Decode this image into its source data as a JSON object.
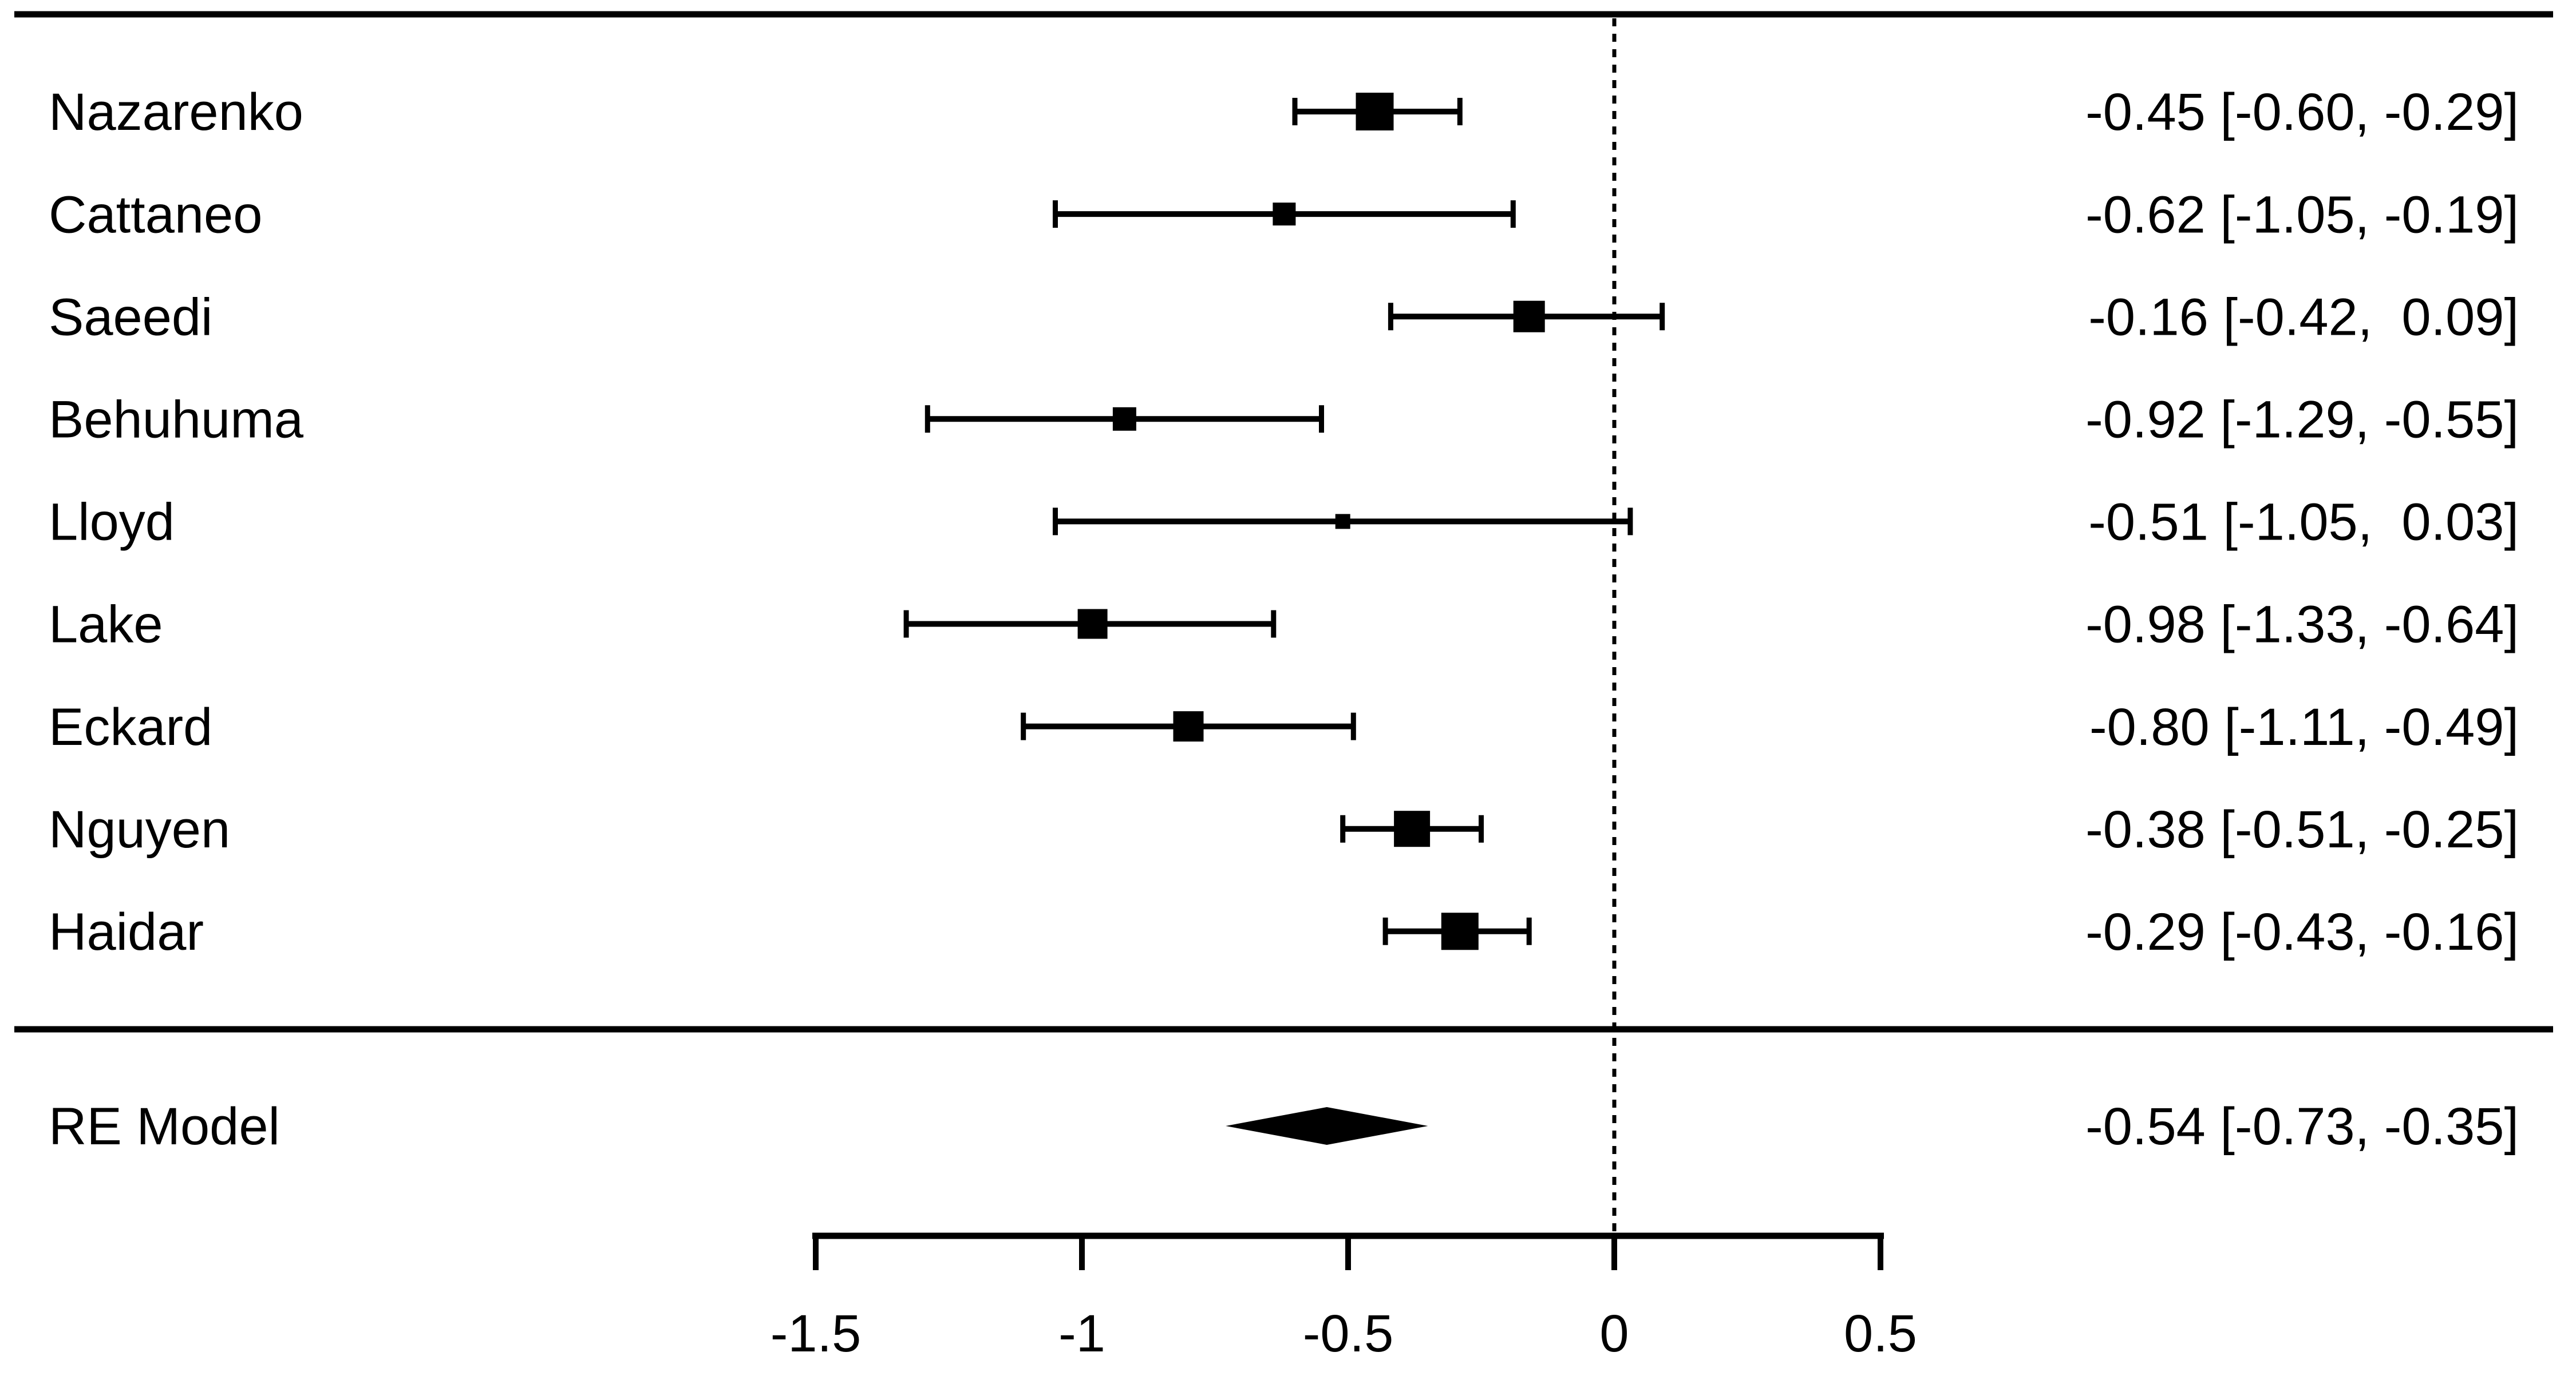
{
  "chart_data": {
    "type": "forest",
    "title": "",
    "x_axis": {
      "ticks": [
        -1.5,
        -1.0,
        -0.5,
        0.0,
        0.5
      ],
      "tick_labels": [
        "-1.5",
        "-1",
        "-0.5",
        "0",
        "0.5"
      ],
      "range": [
        -1.5,
        0.5
      ],
      "reference_line": 0
    },
    "studies": [
      {
        "label": "Nazarenko",
        "estimate": -0.45,
        "ci_low": -0.6,
        "ci_high": -0.29,
        "annotation": "-0.45 [-0.60, -0.29]",
        "marker_size": 66
      },
      {
        "label": "Cattaneo",
        "estimate": -0.62,
        "ci_low": -1.05,
        "ci_high": -0.19,
        "annotation": "-0.62 [-1.05, -0.19]",
        "marker_size": 40
      },
      {
        "label": "Saeedi",
        "estimate": -0.16,
        "ci_low": -0.42,
        "ci_high": 0.09,
        "annotation": "-0.16 [-0.42,  0.09]",
        "marker_size": 55
      },
      {
        "label": "Behuhuma",
        "estimate": -0.92,
        "ci_low": -1.29,
        "ci_high": -0.55,
        "annotation": "-0.92 [-1.29, -0.55]",
        "marker_size": 41
      },
      {
        "label": "Lloyd",
        "estimate": -0.51,
        "ci_low": -1.05,
        "ci_high": 0.03,
        "annotation": "-0.51 [-1.05,  0.03]",
        "marker_size": 26
      },
      {
        "label": "Lake",
        "estimate": -0.98,
        "ci_low": -1.33,
        "ci_high": -0.64,
        "annotation": "-0.98 [-1.33, -0.64]",
        "marker_size": 52
      },
      {
        "label": "Eckard",
        "estimate": -0.8,
        "ci_low": -1.11,
        "ci_high": -0.49,
        "annotation": "-0.80 [-1.11, -0.49]",
        "marker_size": 53
      },
      {
        "label": "Nguyen",
        "estimate": -0.38,
        "ci_low": -0.51,
        "ci_high": -0.25,
        "annotation": "-0.38 [-0.51, -0.25]",
        "marker_size": 63
      },
      {
        "label": "Haidar",
        "estimate": -0.29,
        "ci_low": -0.43,
        "ci_high": -0.16,
        "annotation": "-0.29 [-0.43, -0.16]",
        "marker_size": 65
      }
    ],
    "summary": {
      "label": "RE Model",
      "estimate": -0.54,
      "ci_low": -0.73,
      "ci_high": -0.35,
      "annotation": "-0.54 [-0.73, -0.35]"
    },
    "colors": {
      "foreground": "#000000",
      "background": "#ffffff"
    }
  }
}
